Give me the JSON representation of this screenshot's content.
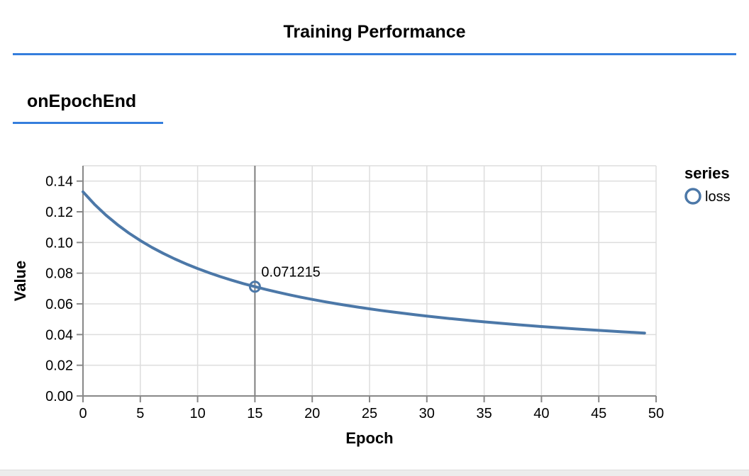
{
  "page": {
    "title": "Training Performance",
    "section_heading": "onEpochEnd",
    "accent_color": "#357edd"
  },
  "chart_data": {
    "type": "line",
    "title": "",
    "xlabel": "Epoch",
    "ylabel": "Value",
    "xlim": [
      0,
      50
    ],
    "ylim": [
      0,
      0.15
    ],
    "x_ticks": [
      0,
      5,
      10,
      15,
      20,
      25,
      30,
      35,
      40,
      45,
      50
    ],
    "y_ticks": [
      0.0,
      0.02,
      0.04,
      0.06,
      0.08,
      0.1,
      0.12,
      0.14
    ],
    "grid": true,
    "colors": {
      "series": "#4c78a8",
      "grid": "#dddddd",
      "axis": "#888888",
      "hover_rule": "#7f7f7f"
    },
    "legend": {
      "title": "series",
      "position": "right",
      "entries": [
        {
          "label": "loss",
          "color": "#4c78a8",
          "symbol": "circle"
        }
      ]
    },
    "series": [
      {
        "name": "loss",
        "color": "#4c78a8",
        "x": [
          0,
          1,
          2,
          3,
          4,
          5,
          6,
          7,
          8,
          9,
          10,
          11,
          12,
          13,
          14,
          15,
          16,
          17,
          18,
          19,
          20,
          21,
          22,
          23,
          24,
          25,
          26,
          27,
          28,
          29,
          30,
          31,
          32,
          33,
          34,
          35,
          36,
          37,
          38,
          39,
          40,
          41,
          42,
          43,
          44,
          45,
          46,
          47,
          48,
          49
        ],
        "y": [
          0.133,
          0.12489,
          0.11783,
          0.11163,
          0.10614,
          0.10124,
          0.09685,
          0.09289,
          0.08929,
          0.08602,
          0.08302,
          0.08027,
          0.07773,
          0.07539,
          0.07322,
          0.071215,
          0.06931,
          0.06755,
          0.06591,
          0.06436,
          0.06291,
          0.06154,
          0.06024,
          0.05902,
          0.05787,
          0.05677,
          0.05573,
          0.05474,
          0.0538,
          0.0529,
          0.05205,
          0.05123,
          0.05045,
          0.0497,
          0.04898,
          0.0483,
          0.04764,
          0.04701,
          0.0464,
          0.04581,
          0.04525,
          0.04471,
          0.04418,
          0.04368,
          0.04319,
          0.04272,
          0.04227,
          0.04183,
          0.0414,
          0.04099
        ]
      }
    ],
    "highlight": {
      "x": 15,
      "y": 0.071215,
      "label": "0.071215"
    }
  }
}
